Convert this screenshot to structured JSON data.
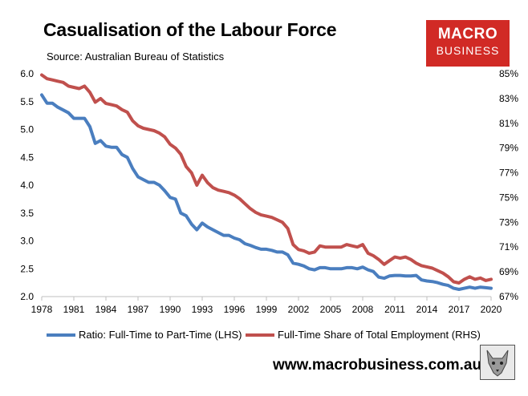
{
  "header": {
    "title": "Casualisation of the Labour Force",
    "source": "Source: Australian Bureau of Statistics"
  },
  "logo": {
    "line1": "MACRO",
    "line2": "BUSINESS"
  },
  "footer": {
    "url": "www.macrobusiness.com.au"
  },
  "colors": {
    "lhs_series": "#4a7ebf",
    "rhs_series": "#c0504d",
    "logo_bg": "#d12a25"
  },
  "chart_data": {
    "type": "line",
    "title": "Casualisation of the Labour Force",
    "x_ticks": [
      "1978",
      "1981",
      "1984",
      "1987",
      "1990",
      "1993",
      "1996",
      "1999",
      "2002",
      "2005",
      "2008",
      "2011",
      "2014",
      "2017",
      "2020"
    ],
    "xlim": [
      1978,
      2020
    ],
    "y_left": {
      "ticks": [
        "2.0",
        "2.5",
        "3.0",
        "3.5",
        "4.0",
        "4.5",
        "5.0",
        "5.5",
        "6.0"
      ],
      "ylim": [
        2.0,
        6.0
      ]
    },
    "y_right": {
      "ticks": [
        "67%",
        "69%",
        "71%",
        "73%",
        "75%",
        "77%",
        "79%",
        "81%",
        "83%",
        "85%"
      ],
      "ylim": [
        67,
        85
      ]
    },
    "grid": false,
    "legend_position": "bottom",
    "series": [
      {
        "name": "Ratio: Full-Time to Part-Time (LHS)",
        "axis": "left",
        "x": [
          1978.0,
          1978.5,
          1979.0,
          1979.5,
          1980.0,
          1980.5,
          1981.0,
          1981.5,
          1982.0,
          1982.5,
          1983.0,
          1983.5,
          1984.0,
          1984.5,
          1985.0,
          1985.5,
          1986.0,
          1986.5,
          1987.0,
          1987.5,
          1988.0,
          1988.5,
          1989.0,
          1989.5,
          1990.0,
          1990.5,
          1991.0,
          1991.5,
          1992.0,
          1992.5,
          1993.0,
          1993.5,
          1994.0,
          1994.5,
          1995.0,
          1995.5,
          1996.0,
          1996.5,
          1997.0,
          1997.5,
          1998.0,
          1998.5,
          1999.0,
          1999.5,
          2000.0,
          2000.5,
          2001.0,
          2001.5,
          2002.0,
          2002.5,
          2003.0,
          2003.5,
          2004.0,
          2004.5,
          2005.0,
          2005.5,
          2006.0,
          2006.5,
          2007.0,
          2007.5,
          2008.0,
          2008.5,
          2009.0,
          2009.5,
          2010.0,
          2010.5,
          2011.0,
          2011.5,
          2012.0,
          2012.5,
          2013.0,
          2013.5,
          2014.0,
          2014.5,
          2015.0,
          2015.5,
          2016.0,
          2016.5,
          2017.0,
          2017.5,
          2018.0,
          2018.5,
          2019.0,
          2019.5,
          2020.0
        ],
        "values": [
          5.62,
          5.47,
          5.47,
          5.4,
          5.35,
          5.3,
          5.2,
          5.2,
          5.2,
          5.05,
          4.75,
          4.8,
          4.7,
          4.68,
          4.68,
          4.55,
          4.5,
          4.3,
          4.15,
          4.1,
          4.05,
          4.05,
          4.0,
          3.9,
          3.78,
          3.75,
          3.5,
          3.45,
          3.3,
          3.2,
          3.32,
          3.25,
          3.2,
          3.15,
          3.1,
          3.1,
          3.05,
          3.02,
          2.95,
          2.92,
          2.88,
          2.85,
          2.85,
          2.83,
          2.8,
          2.8,
          2.75,
          2.6,
          2.58,
          2.55,
          2.5,
          2.48,
          2.52,
          2.52,
          2.5,
          2.5,
          2.5,
          2.52,
          2.52,
          2.5,
          2.53,
          2.48,
          2.45,
          2.35,
          2.33,
          2.37,
          2.38,
          2.38,
          2.37,
          2.37,
          2.38,
          2.3,
          2.28,
          2.27,
          2.25,
          2.22,
          2.2,
          2.15,
          2.13,
          2.15,
          2.17,
          2.15,
          2.17,
          2.16,
          2.15
        ]
      },
      {
        "name": "Full-Time Share of Total Employment (RHS)",
        "axis": "right",
        "x": [
          1978.0,
          1978.5,
          1979.0,
          1979.5,
          1980.0,
          1980.5,
          1981.0,
          1981.5,
          1982.0,
          1982.5,
          1983.0,
          1983.5,
          1984.0,
          1984.5,
          1985.0,
          1985.5,
          1986.0,
          1986.5,
          1987.0,
          1987.5,
          1988.0,
          1988.5,
          1989.0,
          1989.5,
          1990.0,
          1990.5,
          1991.0,
          1991.5,
          1992.0,
          1992.5,
          1993.0,
          1993.5,
          1994.0,
          1994.5,
          1995.0,
          1995.5,
          1996.0,
          1996.5,
          1997.0,
          1997.5,
          1998.0,
          1998.5,
          1999.0,
          1999.5,
          2000.0,
          2000.5,
          2001.0,
          2001.5,
          2002.0,
          2002.5,
          2003.0,
          2003.5,
          2004.0,
          2004.5,
          2005.0,
          2005.5,
          2006.0,
          2006.5,
          2007.0,
          2007.5,
          2008.0,
          2008.5,
          2009.0,
          2009.5,
          2010.0,
          2010.5,
          2011.0,
          2011.5,
          2012.0,
          2012.5,
          2013.0,
          2013.5,
          2014.0,
          2014.5,
          2015.0,
          2015.5,
          2016.0,
          2016.5,
          2017.0,
          2017.5,
          2018.0,
          2018.5,
          2019.0,
          2019.5,
          2020.0
        ],
        "values": [
          84.9,
          84.6,
          84.5,
          84.4,
          84.3,
          84.0,
          83.9,
          83.8,
          84.0,
          83.5,
          82.7,
          83.0,
          82.6,
          82.5,
          82.4,
          82.1,
          81.9,
          81.2,
          80.8,
          80.6,
          80.5,
          80.4,
          80.2,
          79.9,
          79.3,
          79.0,
          78.5,
          77.5,
          77.0,
          76.0,
          76.8,
          76.2,
          75.8,
          75.6,
          75.5,
          75.4,
          75.2,
          74.9,
          74.5,
          74.1,
          73.8,
          73.6,
          73.5,
          73.4,
          73.2,
          73.0,
          72.5,
          71.2,
          70.8,
          70.7,
          70.5,
          70.6,
          71.1,
          71.0,
          71.0,
          71.0,
          71.0,
          71.2,
          71.1,
          71.0,
          71.2,
          70.5,
          70.3,
          70.0,
          69.6,
          69.9,
          70.2,
          70.1,
          70.2,
          70.0,
          69.7,
          69.5,
          69.4,
          69.3,
          69.1,
          68.9,
          68.6,
          68.2,
          68.1,
          68.4,
          68.6,
          68.4,
          68.5,
          68.3,
          68.4
        ]
      }
    ]
  }
}
